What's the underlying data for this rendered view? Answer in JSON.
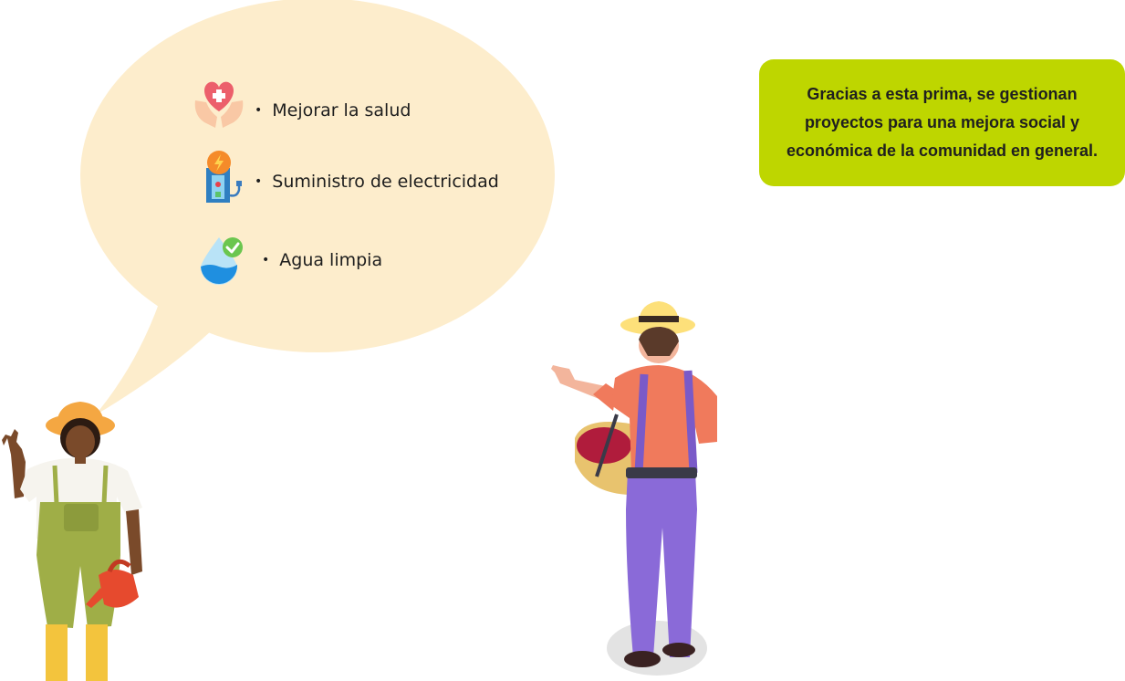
{
  "speech_bubble": {
    "items": [
      {
        "icon": "heart-hands-icon",
        "label": "Mejorar la salud"
      },
      {
        "icon": "power-station-icon",
        "label": "Suministro de electricidad"
      },
      {
        "icon": "water-drop-check-icon",
        "label": "Agua limpia"
      }
    ],
    "bullet": "•"
  },
  "info_card": {
    "text": "Gracias a esta prima, se gestionan proyectos para una mejora social y económica de la comunidad en general."
  },
  "colors": {
    "bubble": "#fdedcc",
    "card": "#bed600",
    "text": "#1f1f1f"
  }
}
